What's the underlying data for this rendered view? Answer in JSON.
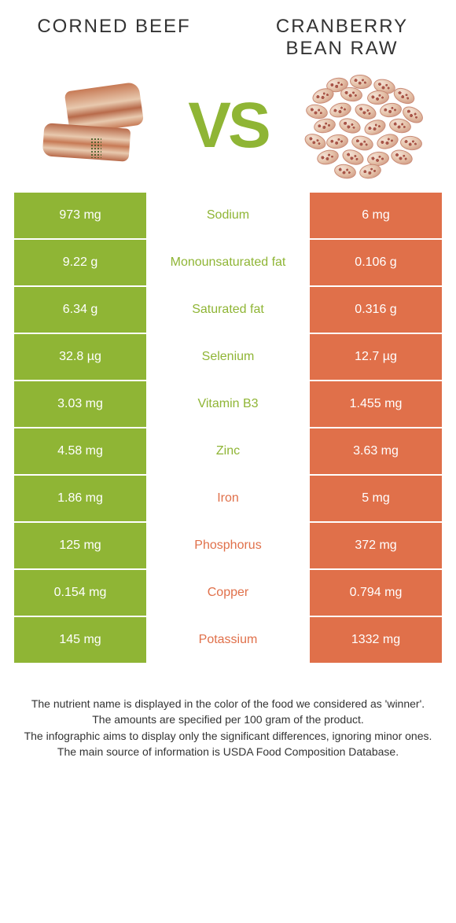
{
  "colors": {
    "green": "#8fb535",
    "orange": "#e0704a",
    "dark": "#333333"
  },
  "left": {
    "title": "CORNED BEEF"
  },
  "right": {
    "title": "CRANBERRY BEAN RAW"
  },
  "vs": "VS",
  "rows": [
    {
      "l": "973 mg",
      "m": "Sodium",
      "r": "6 mg",
      "winner": "left"
    },
    {
      "l": "9.22 g",
      "m": "Monounsaturated fat",
      "r": "0.106 g",
      "winner": "left"
    },
    {
      "l": "6.34 g",
      "m": "Saturated fat",
      "r": "0.316 g",
      "winner": "left"
    },
    {
      "l": "32.8 µg",
      "m": "Selenium",
      "r": "12.7 µg",
      "winner": "left"
    },
    {
      "l": "3.03 mg",
      "m": "Vitamin B3",
      "r": "1.455 mg",
      "winner": "left"
    },
    {
      "l": "4.58 mg",
      "m": "Zinc",
      "r": "3.63 mg",
      "winner": "left"
    },
    {
      "l": "1.86 mg",
      "m": "Iron",
      "r": "5 mg",
      "winner": "right"
    },
    {
      "l": "125 mg",
      "m": "Phosphorus",
      "r": "372 mg",
      "winner": "right"
    },
    {
      "l": "0.154 mg",
      "m": "Copper",
      "r": "0.794 mg",
      "winner": "right"
    },
    {
      "l": "145 mg",
      "m": "Potassium",
      "r": "1332 mg",
      "winner": "right"
    }
  ],
  "footer": [
    "The nutrient name is displayed in the color of the food we considered as 'winner'.",
    "The amounts are specified per 100 gram of the product.",
    "The infographic aims to display only the significant differences, ignoring minor ones.",
    "The main source of information is USDA Food Composition Database."
  ]
}
